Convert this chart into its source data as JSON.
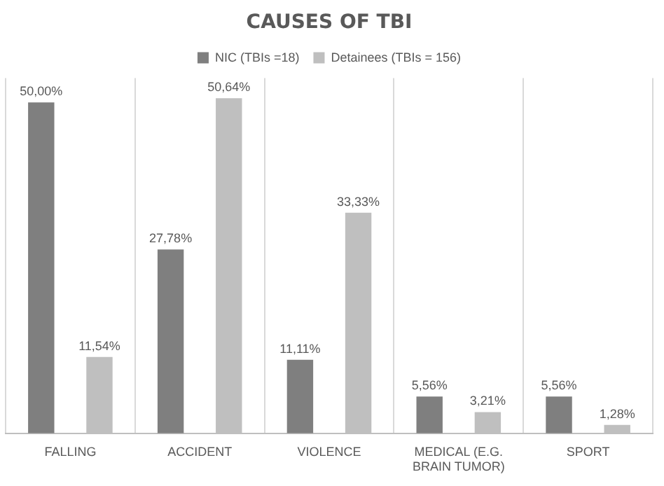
{
  "chart_data": {
    "type": "bar",
    "title": "CAUSES OF TBI",
    "categories": [
      "FALLING",
      "ACCIDENT",
      "VIOLENCE",
      "MEDICAL (E.G. BRAIN TUMOR)",
      "SPORT"
    ],
    "series": [
      {
        "name": "NIC (TBIs =18)",
        "color": "#7f7f7f",
        "values": [
          50.0,
          27.78,
          11.11,
          5.56,
          5.56
        ],
        "value_labels": [
          "50,00%",
          "27,78%",
          "11,11%",
          "5,56%",
          "5,56%"
        ]
      },
      {
        "name": "Detainees (TBIs = 156)",
        "color": "#bfbfbf",
        "values": [
          11.54,
          50.64,
          33.33,
          3.21,
          1.28
        ],
        "value_labels": [
          "11,54%",
          "50,64%",
          "33,33%",
          "3,21%",
          "1,28%"
        ]
      }
    ],
    "grid": "x",
    "legend": "top"
  }
}
